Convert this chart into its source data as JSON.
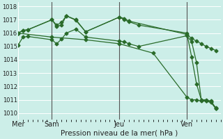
{
  "xlabel": "Pression niveau de la mer( hPa )",
  "bg_color": "#cceee8",
  "grid_color": "#ffffff",
  "line_color": "#2a6b2a",
  "ylim": [
    1009.5,
    1018.3
  ],
  "yticks": [
    1010,
    1011,
    1012,
    1013,
    1014,
    1015,
    1016,
    1017,
    1018
  ],
  "xlim": [
    0,
    42
  ],
  "vline_positions": [
    7,
    21,
    35
  ],
  "vline_color": "#555555",
  "xtick_positions": [
    0,
    7,
    21,
    35
  ],
  "xtick_labels": [
    "Mer",
    "Sam",
    "Jeu",
    "Ven"
  ],
  "s1_x": [
    0,
    1,
    2,
    7,
    8,
    9,
    10,
    12,
    14,
    21,
    22,
    23,
    35,
    36,
    37,
    38,
    39,
    40,
    41
  ],
  "s1_y": [
    1016.0,
    1016.2,
    1016.25,
    1017.0,
    1016.6,
    1016.8,
    1017.3,
    1017.0,
    1016.1,
    1017.2,
    1017.1,
    1016.9,
    1015.9,
    1015.6,
    1015.4,
    1015.2,
    1015.0,
    1014.85,
    1014.7
  ],
  "s2_x": [
    0,
    1,
    2,
    7,
    8,
    9,
    10,
    12,
    14,
    21,
    22,
    23,
    25,
    35,
    36,
    37,
    38,
    39,
    40,
    41
  ],
  "s2_y": [
    1016.0,
    1016.2,
    1016.25,
    1017.0,
    1016.5,
    1016.6,
    1017.3,
    1016.95,
    1016.1,
    1017.2,
    1017.0,
    1016.85,
    1016.6,
    1016.0,
    1014.2,
    1012.2,
    1011.0,
    1011.0,
    1010.9,
    1010.4
  ],
  "s3_x": [
    0,
    1,
    2,
    7,
    8,
    9,
    10,
    12,
    14,
    21,
    22,
    23,
    25,
    35,
    36,
    37,
    38,
    39,
    40,
    41
  ],
  "s3_y": [
    1015.1,
    1015.7,
    1015.75,
    1015.5,
    1015.2,
    1015.55,
    1016.0,
    1016.3,
    1015.7,
    1015.4,
    1015.35,
    1015.2,
    1015.0,
    1015.8,
    1015.35,
    1013.8,
    1011.0,
    1010.9,
    1010.8,
    1010.35
  ],
  "s4_x": [
    0,
    7,
    14,
    21,
    28,
    35,
    36,
    37,
    38,
    39,
    40,
    41
  ],
  "s4_y": [
    1016.0,
    1015.7,
    1015.5,
    1015.2,
    1014.5,
    1011.2,
    1011.0,
    1011.0,
    1010.9,
    1010.9,
    1010.85,
    1010.35
  ],
  "marker": "D",
  "marker_size": 2.5,
  "linewidth": 0.9
}
